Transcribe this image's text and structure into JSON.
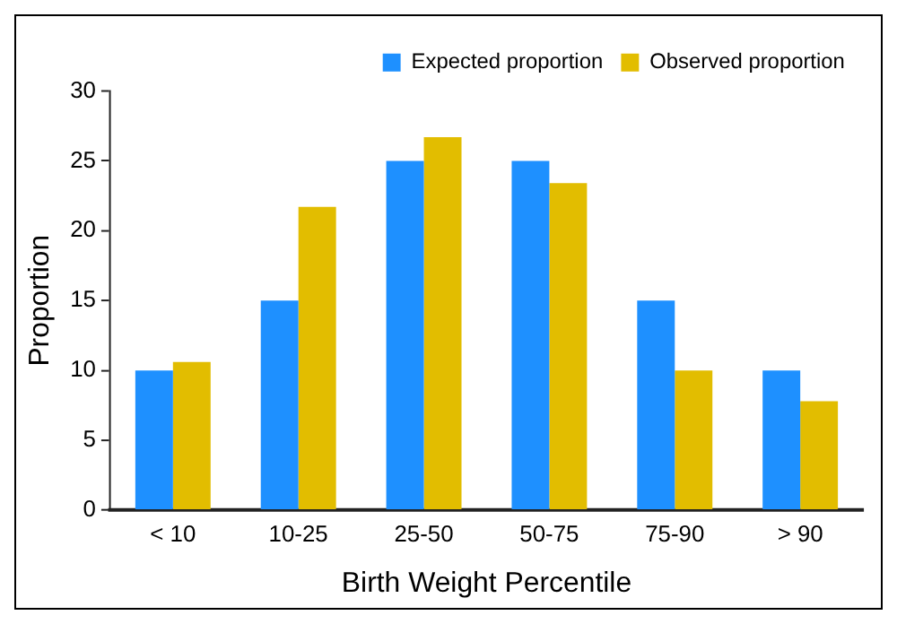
{
  "chart_data": {
    "type": "bar",
    "xlabel": "Birth Weight Percentile",
    "ylabel": "Proportion",
    "categories": [
      "< 10",
      "10-25",
      "25-50",
      "50-75",
      "75-90",
      "> 90"
    ],
    "series": [
      {
        "name": "Expected proportion",
        "color": "#1e90ff",
        "values": [
          10,
          15,
          25,
          25,
          15,
          10
        ]
      },
      {
        "name": "Observed proportion",
        "color": "#e2bd00",
        "values": [
          10.6,
          21.7,
          26.7,
          23.4,
          10,
          7.8
        ]
      }
    ],
    "ylim": [
      0,
      30
    ],
    "yticks": [
      0,
      5,
      10,
      15,
      20,
      25,
      30
    ],
    "grid": false,
    "legend": "top right"
  }
}
